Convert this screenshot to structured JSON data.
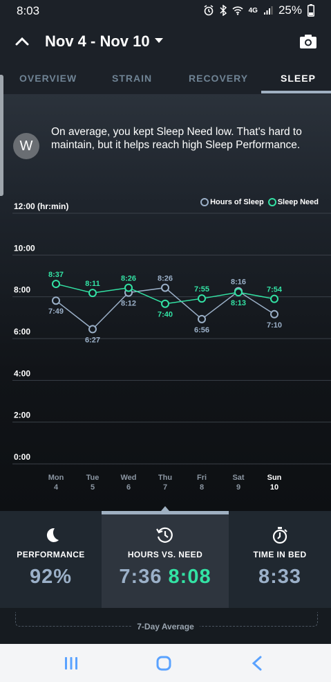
{
  "status_bar": {
    "time": "8:03",
    "network": "4G",
    "battery": "25%"
  },
  "header": {
    "date_range": "Nov 4 - Nov 10"
  },
  "tabs": [
    {
      "label": "OVERVIEW"
    },
    {
      "label": "STRAIN"
    },
    {
      "label": "RECOVERY"
    },
    {
      "label": "SLEEP",
      "active": true
    }
  ],
  "coach": {
    "avatar_letter": "W",
    "message": "On average, you kept Sleep Need low.  That's hard to maintain, but it helps reach high Sleep Performance."
  },
  "colors": {
    "hours": "#9bb0c8",
    "need": "#33e2a4",
    "background": "#1c2128"
  },
  "chart_data": {
    "type": "line",
    "title": "",
    "ylabel": "12:00 (hr:min)",
    "ylim": [
      0,
      12
    ],
    "y_ticks": [
      "0:00",
      "2:00",
      "4:00",
      "6:00",
      "8:00",
      "10:00"
    ],
    "categories": [
      {
        "day": "Mon",
        "date": "4"
      },
      {
        "day": "Tue",
        "date": "5"
      },
      {
        "day": "Wed",
        "date": "6"
      },
      {
        "day": "Thu",
        "date": "7"
      },
      {
        "day": "Fri",
        "date": "8"
      },
      {
        "day": "Sat",
        "date": "9"
      },
      {
        "day": "Sun",
        "date": "10"
      }
    ],
    "legend": [
      "Hours of Sleep",
      "Sleep Need"
    ],
    "series": [
      {
        "name": "Hours of Sleep",
        "labels": [
          "7:49",
          "6:27",
          "8:12",
          "8:26",
          "6:56",
          "8:16",
          "7:10"
        ]
      },
      {
        "name": "Sleep Need",
        "labels": [
          "8:37",
          "8:11",
          "8:26",
          "7:40",
          "7:55",
          "8:13",
          "7:54"
        ]
      }
    ]
  },
  "summary": {
    "performance": {
      "label": "PERFORMANCE",
      "value": "92%"
    },
    "hours_vs_need": {
      "label": "HOURS VS. NEED",
      "hours": "7:36",
      "need": "8:08"
    },
    "time_in_bed": {
      "label": "TIME IN BED",
      "value": "8:33"
    },
    "footer": "7-Day Average"
  }
}
